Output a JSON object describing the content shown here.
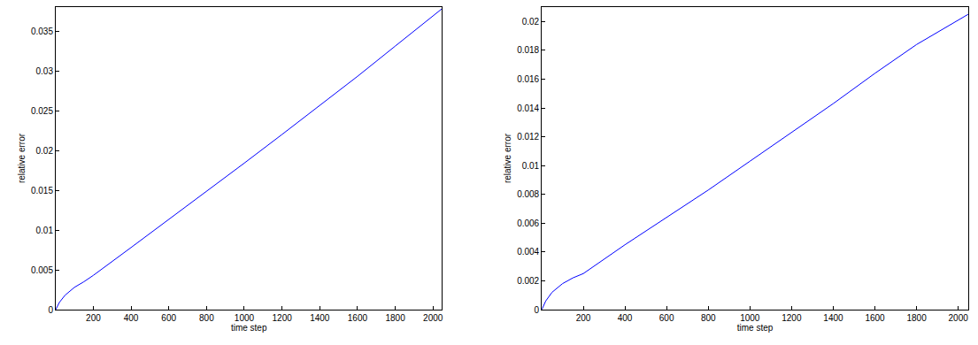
{
  "chart_data": [
    {
      "type": "line",
      "x_label": "time step",
      "y_label": "relative error",
      "x": [
        1,
        20,
        50,
        100,
        150,
        200,
        400,
        600,
        800,
        1000,
        1200,
        1400,
        1600,
        1800,
        2048
      ],
      "series": [
        {
          "color": "#0000ff",
          "values": [
            0,
            0.0009,
            0.0018,
            0.0028,
            0.0035,
            0.0043,
            0.0078,
            0.0113,
            0.0148,
            0.0184,
            0.022,
            0.0256,
            0.0293,
            0.0331,
            0.0378
          ]
        }
      ],
      "xlim": [
        1,
        2048
      ],
      "xticks": [
        200,
        400,
        600,
        800,
        1000,
        1200,
        1400,
        1600,
        1800,
        2000
      ],
      "ylim": [
        0,
        0.038
      ],
      "yticks": [
        0,
        0.005,
        0.01,
        0.015,
        0.02,
        0.025,
        0.03,
        0.035
      ],
      "grid": false
    },
    {
      "type": "line",
      "x_label": "time step",
      "y_label": "relative error",
      "x": [
        1,
        20,
        50,
        100,
        150,
        200,
        400,
        600,
        800,
        1000,
        1200,
        1400,
        1600,
        1800,
        2048
      ],
      "series": [
        {
          "color": "#0000ff",
          "values": [
            0,
            0.0006,
            0.0012,
            0.0018,
            0.0022,
            0.0025,
            0.0045,
            0.0064,
            0.0083,
            0.0103,
            0.0123,
            0.0143,
            0.0164,
            0.0184,
            0.0205
          ]
        }
      ],
      "xlim": [
        1,
        2048
      ],
      "xticks": [
        200,
        400,
        600,
        800,
        1000,
        1200,
        1400,
        1600,
        1800,
        2000
      ],
      "ylim": [
        0,
        0.021
      ],
      "yticks": [
        0,
        0.002,
        0.004,
        0.006,
        0.008,
        0.01,
        0.012,
        0.014,
        0.016,
        0.018,
        0.02
      ],
      "grid": false
    }
  ]
}
